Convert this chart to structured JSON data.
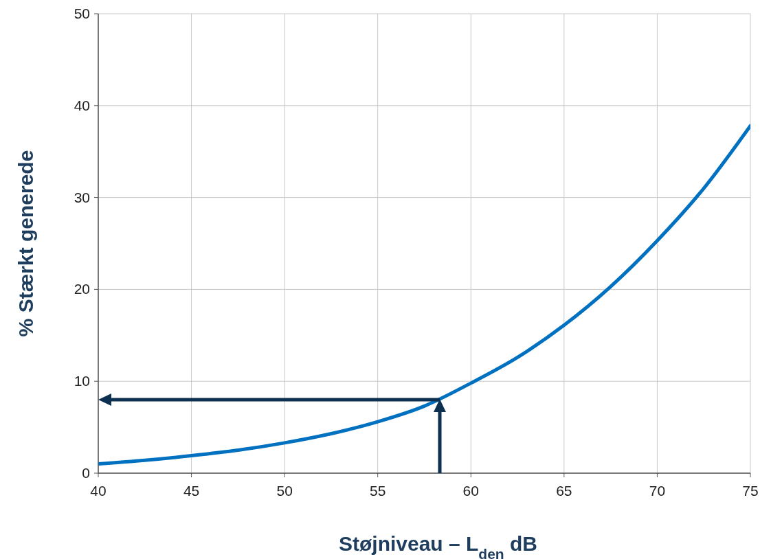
{
  "chart_data": {
    "type": "line",
    "xlabel": "Støjniveau – L$_{den}$ dB",
    "ylabel": "% Stærkt generede",
    "xlim": [
      40,
      75
    ],
    "xticks": [
      40,
      45,
      50,
      55,
      60,
      65,
      70,
      75
    ],
    "ylim": [
      0,
      50
    ],
    "yticks": [
      0,
      10,
      20,
      30,
      40,
      50
    ],
    "grid": true,
    "series": [
      {
        "color": "#0070c0",
        "x": [
          40,
          42.5,
          45,
          47.5,
          50,
          52.5,
          55,
          57.5,
          60,
          62.5,
          65,
          67.5,
          70,
          72.5,
          75
        ],
        "values": [
          1.0,
          1.4,
          1.9,
          2.5,
          3.3,
          4.3,
          5.6,
          7.3,
          9.8,
          12.6,
          16.1,
          20.3,
          25.3,
          31,
          37.8
        ]
      }
    ]
  }
}
